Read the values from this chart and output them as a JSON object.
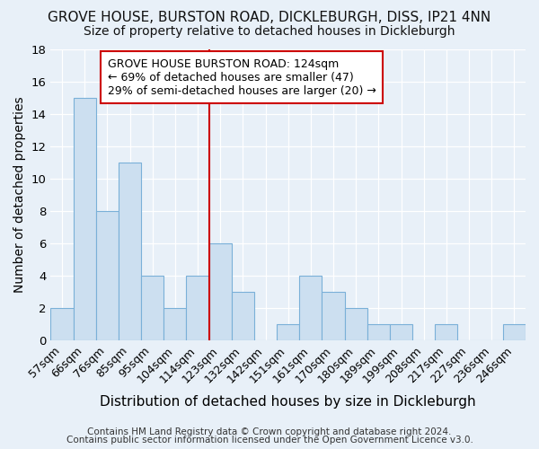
{
  "title": "GROVE HOUSE, BURSTON ROAD, DICKLEBURGH, DISS, IP21 4NN",
  "subtitle": "Size of property relative to detached houses in Dickleburgh",
  "xlabel": "Distribution of detached houses by size in Dickleburgh",
  "ylabel": "Number of detached properties",
  "categories": [
    "57sqm",
    "66sqm",
    "76sqm",
    "85sqm",
    "95sqm",
    "104sqm",
    "114sqm",
    "123sqm",
    "132sqm",
    "142sqm",
    "151sqm",
    "161sqm",
    "170sqm",
    "180sqm",
    "189sqm",
    "199sqm",
    "208sqm",
    "217sqm",
    "227sqm",
    "236sqm",
    "246sqm"
  ],
  "values": [
    2,
    15,
    8,
    11,
    4,
    2,
    4,
    6,
    3,
    0,
    1,
    4,
    3,
    2,
    1,
    1,
    0,
    1,
    0,
    0,
    1
  ],
  "bar_color": "#ccdff0",
  "bar_edge_color": "#7ab0d8",
  "background_color": "#e8f0f8",
  "grid_color": "#ffffff",
  "red_line_index": 7,
  "red_line_color": "#cc0000",
  "annotation_title": "GROVE HOUSE BURSTON ROAD: 124sqm",
  "annotation_line1": "← 69% of detached houses are smaller (47)",
  "annotation_line2": "29% of semi-detached houses are larger (20) →",
  "annotation_border_color": "#cc0000",
  "footnote1": "Contains HM Land Registry data © Crown copyright and database right 2024.",
  "footnote2": "Contains public sector information licensed under the Open Government Licence v3.0.",
  "ylim": [
    0,
    18
  ],
  "title_fontsize": 11,
  "subtitle_fontsize": 10,
  "tick_fontsize": 9,
  "ylabel_fontsize": 10,
  "xlabel_fontsize": 11,
  "annotation_fontsize": 9,
  "footnote_fontsize": 7.5
}
